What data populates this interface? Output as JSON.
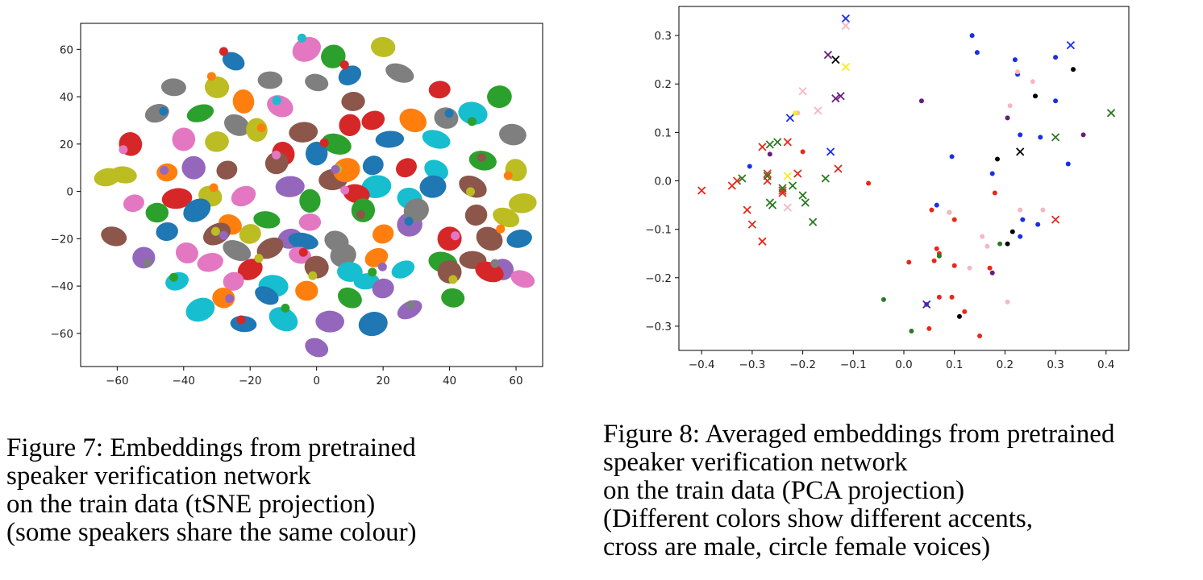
{
  "figures": {
    "fig7": {
      "caption_lines": [
        "Figure 7: Embeddings from pretrained",
        "speaker verification network",
        "on the train data (tSNE projection)",
        "(some speakers share the same colour)"
      ]
    },
    "fig8": {
      "caption_lines": [
        "Figure 8: Averaged embeddings from pretrained",
        "speaker verification network",
        "on the train data (PCA projection)",
        "(Different colors show different accents,",
        "cross are male, circle female voices)"
      ]
    }
  },
  "chart_data": [
    {
      "type": "scatter",
      "title": "",
      "xlabel": "",
      "ylabel": "",
      "xlim": [
        -71,
        68
      ],
      "ylim": [
        -74,
        71
      ],
      "xticks": [
        -60,
        -40,
        -20,
        0,
        20,
        40,
        60
      ],
      "yticks": [
        -60,
        -40,
        -20,
        0,
        20,
        40,
        60
      ],
      "grid": false,
      "legend": "none",
      "palette": [
        "#1f77b4",
        "#ff7f0e",
        "#2ca02c",
        "#d62728",
        "#9467bd",
        "#8c564b",
        "#e377c2",
        "#7f7f7f",
        "#bcbd22",
        "#17becf"
      ],
      "clusters": [
        {
          "x": -3,
          "y": 60,
          "c": 6
        },
        {
          "x": 5,
          "y": 57,
          "c": 2
        },
        {
          "x": 20,
          "y": 61,
          "c": 8
        },
        {
          "x": -25,
          "y": 55,
          "c": 0
        },
        {
          "x": -14,
          "y": 47,
          "c": 7
        },
        {
          "x": 0,
          "y": 46,
          "c": 7
        },
        {
          "x": 10,
          "y": 49,
          "c": 0
        },
        {
          "x": 25,
          "y": 50,
          "c": 7
        },
        {
          "x": -43,
          "y": 44,
          "c": 7
        },
        {
          "x": -30,
          "y": 44,
          "c": 8
        },
        {
          "x": 37,
          "y": 43,
          "c": 3
        },
        {
          "x": -22,
          "y": 38,
          "c": 1
        },
        {
          "x": -11,
          "y": 36,
          "c": 6
        },
        {
          "x": 11,
          "y": 38,
          "c": 5
        },
        {
          "x": 55,
          "y": 40,
          "c": 2
        },
        {
          "x": -48,
          "y": 33,
          "c": 7
        },
        {
          "x": -35,
          "y": 33,
          "c": 2
        },
        {
          "x": 29,
          "y": 30,
          "c": 1
        },
        {
          "x": 47,
          "y": 33,
          "c": 9
        },
        {
          "x": -24,
          "y": 28,
          "c": 7
        },
        {
          "x": 17,
          "y": 30,
          "c": 3
        },
        {
          "x": 39,
          "y": 31,
          "c": 7
        },
        {
          "x": -40,
          "y": 22,
          "c": 6
        },
        {
          "x": -30,
          "y": 21,
          "c": 8
        },
        {
          "x": -18,
          "y": 26,
          "c": 8
        },
        {
          "x": -4,
          "y": 25,
          "c": 5
        },
        {
          "x": 10,
          "y": 28,
          "c": 3
        },
        {
          "x": -56,
          "y": 20,
          "c": 3
        },
        {
          "x": 59,
          "y": 24,
          "c": 7
        },
        {
          "x": 36,
          "y": 22,
          "c": 9
        },
        {
          "x": -10,
          "y": 16,
          "c": 3
        },
        {
          "x": 6,
          "y": 20,
          "c": 2
        },
        {
          "x": 22,
          "y": 22,
          "c": 0
        },
        {
          "x": -45,
          "y": 8,
          "c": 1
        },
        {
          "x": -27,
          "y": 9,
          "c": 5
        },
        {
          "x": -12,
          "y": 12,
          "c": 5
        },
        {
          "x": 0,
          "y": 16,
          "c": 0
        },
        {
          "x": 17,
          "y": 11,
          "c": 0
        },
        {
          "x": 36,
          "y": 9,
          "c": 9
        },
        {
          "x": 50,
          "y": 13,
          "c": 2
        },
        {
          "x": -37,
          "y": 10,
          "c": 4
        },
        {
          "x": -63,
          "y": 6,
          "c": 8
        },
        {
          "x": 60,
          "y": 9,
          "c": 8
        },
        {
          "x": -55,
          "y": -5,
          "c": 6
        },
        {
          "x": -42,
          "y": -3,
          "c": 3
        },
        {
          "x": -32,
          "y": -2,
          "c": 8
        },
        {
          "x": -22,
          "y": -2,
          "c": 6
        },
        {
          "x": -8,
          "y": 2,
          "c": 4
        },
        {
          "x": 5,
          "y": 5,
          "c": 5
        },
        {
          "x": 18,
          "y": 2,
          "c": 9
        },
        {
          "x": 28,
          "y": -3,
          "c": 9
        },
        {
          "x": 47,
          "y": 2,
          "c": 5
        },
        {
          "x": 35,
          "y": 2,
          "c": 0
        },
        {
          "x": -2,
          "y": -4,
          "c": 2
        },
        {
          "x": 12,
          "y": -1,
          "c": 3
        },
        {
          "x": 62,
          "y": -5,
          "c": 8
        },
        {
          "x": -36,
          "y": -8,
          "c": 0
        },
        {
          "x": -26,
          "y": -14,
          "c": 1
        },
        {
          "x": -15,
          "y": -12,
          "c": 2
        },
        {
          "x": -2,
          "y": -13,
          "c": 6
        },
        {
          "x": 14,
          "y": -8,
          "c": 2
        },
        {
          "x": 28,
          "y": -14,
          "c": 4
        },
        {
          "x": 48,
          "y": -10,
          "c": 5
        },
        {
          "x": 57,
          "y": -11,
          "c": 8
        },
        {
          "x": -61,
          "y": -19,
          "c": 5
        },
        {
          "x": -45,
          "y": -17,
          "c": 0
        },
        {
          "x": -30,
          "y": -18,
          "c": 5
        },
        {
          "x": -20,
          "y": -18,
          "c": 8
        },
        {
          "x": -8,
          "y": -20,
          "c": 4
        },
        {
          "x": -4,
          "y": -21,
          "c": 0
        },
        {
          "x": 6,
          "y": -21,
          "c": 7
        },
        {
          "x": 20,
          "y": -18,
          "c": 1
        },
        {
          "x": 40,
          "y": -20,
          "c": 3
        },
        {
          "x": 52,
          "y": -20,
          "c": 5
        },
        {
          "x": 61,
          "y": -20,
          "c": 0
        },
        {
          "x": -52,
          "y": -28,
          "c": 4
        },
        {
          "x": -39,
          "y": -26,
          "c": 6
        },
        {
          "x": -24,
          "y": -25,
          "c": 7
        },
        {
          "x": -14,
          "y": -24,
          "c": 5
        },
        {
          "x": -5,
          "y": -27,
          "c": 6
        },
        {
          "x": 8,
          "y": -27,
          "c": 7
        },
        {
          "x": 18,
          "y": -28,
          "c": 1
        },
        {
          "x": 38,
          "y": -30,
          "c": 2
        },
        {
          "x": 47,
          "y": -29,
          "c": 5
        },
        {
          "x": 56,
          "y": -33,
          "c": 4
        },
        {
          "x": -32,
          "y": -30,
          "c": 6
        },
        {
          "x": -20,
          "y": -33,
          "c": 3
        },
        {
          "x": 0,
          "y": -32,
          "c": 5
        },
        {
          "x": 10,
          "y": -34,
          "c": 9
        },
        {
          "x": 26,
          "y": -33,
          "c": 9
        },
        {
          "x": 40,
          "y": -34,
          "c": 5
        },
        {
          "x": 52,
          "y": -34,
          "c": 3
        },
        {
          "x": 62,
          "y": -37,
          "c": 6
        },
        {
          "x": -42,
          "y": -38,
          "c": 9
        },
        {
          "x": -25,
          "y": -38,
          "c": 6
        },
        {
          "x": -13,
          "y": -40,
          "c": 9
        },
        {
          "x": 15,
          "y": -38,
          "c": 9
        },
        {
          "x": 20,
          "y": -41,
          "c": 4
        },
        {
          "x": -3,
          "y": -42,
          "c": 1
        },
        {
          "x": -28,
          "y": -45,
          "c": 1
        },
        {
          "x": -15,
          "y": -44,
          "c": 0
        },
        {
          "x": 10,
          "y": -45,
          "c": 2
        },
        {
          "x": 28,
          "y": -50,
          "c": 4
        },
        {
          "x": 41,
          "y": -45,
          "c": 2
        },
        {
          "x": -35,
          "y": -50,
          "c": 9
        },
        {
          "x": -10,
          "y": -54,
          "c": 9
        },
        {
          "x": 4,
          "y": -55,
          "c": 4
        },
        {
          "x": 17,
          "y": -56,
          "c": 0
        },
        {
          "x": -22,
          "y": -56,
          "c": 0
        },
        {
          "x": 0,
          "y": -66,
          "c": 4
        },
        {
          "x": -58,
          "y": 7,
          "c": 8
        },
        {
          "x": 9,
          "y": 9,
          "c": 1
        },
        {
          "x": 27,
          "y": 10,
          "c": 3
        },
        {
          "x": -48,
          "y": -9,
          "c": 2
        },
        {
          "x": 30,
          "y": -8,
          "c": 7
        }
      ]
    },
    {
      "type": "scatter",
      "title": "",
      "xlabel": "",
      "ylabel": "",
      "xlim": [
        -0.445,
        0.445
      ],
      "ylim": [
        -0.35,
        0.36
      ],
      "xticks": [
        -0.4,
        -0.3,
        -0.2,
        -0.1,
        0.0,
        0.1,
        0.2,
        0.3,
        0.4
      ],
      "xtick_labels": [
        "−0.4",
        "−0.3",
        "−0.2",
        "−0.1",
        "0.0",
        "0.1",
        "0.2",
        "0.3",
        "0.4"
      ],
      "yticks": [
        -0.3,
        -0.2,
        -0.1,
        0.0,
        0.1,
        0.2,
        0.3
      ],
      "ytick_labels": [
        "−0.3",
        "−0.2",
        "−0.1",
        "0.0",
        "0.1",
        "0.2",
        "0.3"
      ],
      "grid": false,
      "legend": "none",
      "series": [
        {
          "color": "#e8281a",
          "marker": "x",
          "points": [
            [
              -0.4,
              -0.02
            ],
            [
              -0.34,
              -0.01
            ],
            [
              -0.33,
              0.0
            ],
            [
              -0.31,
              -0.06
            ],
            [
              -0.3,
              -0.09
            ],
            [
              -0.28,
              -0.125
            ],
            [
              -0.28,
              0.07
            ],
            [
              -0.27,
              0.0
            ],
            [
              -0.27,
              0.015
            ],
            [
              -0.24,
              -0.02
            ],
            [
              -0.24,
              -0.025
            ],
            [
              -0.23,
              0.08
            ],
            [
              -0.21,
              0.015
            ],
            [
              -0.13,
              0.025
            ],
            [
              0.3,
              -0.08
            ]
          ]
        },
        {
          "color": "#e8281a",
          "marker": "o",
          "points": [
            [
              -0.2,
              0.06
            ],
            [
              -0.07,
              -0.005
            ],
            [
              0.01,
              -0.168
            ],
            [
              0.055,
              -0.06
            ],
            [
              0.06,
              -0.165
            ],
            [
              0.065,
              -0.14
            ],
            [
              0.07,
              -0.15
            ],
            [
              0.09,
              -0.065
            ],
            [
              0.1,
              -0.08
            ],
            [
              0.1,
              -0.175
            ],
            [
              0.12,
              -0.27
            ],
            [
              0.05,
              -0.305
            ],
            [
              0.095,
              -0.24
            ],
            [
              0.07,
              -0.24
            ],
            [
              0.15,
              -0.32
            ],
            [
              0.045,
              -0.255
            ],
            [
              0.18,
              -0.025
            ],
            [
              0.17,
              -0.18
            ]
          ]
        },
        {
          "color": "#2a7a22",
          "marker": "x",
          "points": [
            [
              -0.32,
              0.005
            ],
            [
              -0.265,
              0.075
            ],
            [
              -0.25,
              0.08
            ],
            [
              -0.27,
              0.01
            ],
            [
              -0.265,
              -0.045
            ],
            [
              -0.26,
              -0.05
            ],
            [
              -0.24,
              -0.015
            ],
            [
              -0.22,
              -0.01
            ],
            [
              -0.2,
              -0.03
            ],
            [
              -0.195,
              -0.045
            ],
            [
              -0.18,
              -0.085
            ],
            [
              -0.155,
              0.005
            ],
            [
              0.3,
              0.09
            ],
            [
              0.41,
              0.14
            ]
          ]
        },
        {
          "color": "#2a7a22",
          "marker": "o",
          "points": [
            [
              -0.04,
              -0.245
            ],
            [
              0.015,
              -0.31
            ],
            [
              0.07,
              -0.155
            ],
            [
              0.19,
              -0.13
            ]
          ]
        },
        {
          "color": "#1a2ee6",
          "marker": "x",
          "points": [
            [
              -0.115,
              0.335
            ],
            [
              -0.225,
              0.13
            ],
            [
              -0.145,
              0.06
            ],
            [
              0.045,
              -0.255
            ],
            [
              0.33,
              0.28
            ]
          ]
        },
        {
          "color": "#1a2ee6",
          "marker": "o",
          "points": [
            [
              -0.305,
              0.03
            ],
            [
              0.095,
              0.05
            ],
            [
              0.135,
              0.3
            ],
            [
              0.145,
              0.265
            ],
            [
              0.22,
              0.25
            ],
            [
              0.225,
              0.22
            ],
            [
              0.23,
              0.095
            ],
            [
              0.27,
              0.09
            ],
            [
              0.3,
              0.255
            ],
            [
              0.3,
              0.165
            ],
            [
              0.325,
              0.035
            ],
            [
              0.175,
              0.015
            ],
            [
              0.065,
              -0.05
            ],
            [
              0.235,
              -0.08
            ],
            [
              0.23,
              -0.115
            ],
            [
              0.265,
              -0.09
            ]
          ]
        },
        {
          "color": "#000000",
          "marker": "x",
          "points": [
            [
              -0.135,
              0.25
            ],
            [
              0.23,
              0.06
            ]
          ]
        },
        {
          "color": "#000000",
          "marker": "o",
          "points": [
            [
              0.335,
              0.23
            ],
            [
              0.26,
              0.175
            ],
            [
              0.185,
              0.045
            ],
            [
              0.215,
              -0.105
            ],
            [
              0.205,
              -0.13
            ],
            [
              0.11,
              -0.28
            ]
          ]
        },
        {
          "color": "#f5b8c0",
          "marker": "x",
          "points": [
            [
              -0.115,
              0.32
            ],
            [
              -0.2,
              0.185
            ],
            [
              -0.17,
              0.145
            ],
            [
              -0.23,
              -0.055
            ]
          ]
        },
        {
          "color": "#f5b8c0",
          "marker": "o",
          "points": [
            [
              -0.21,
              0.14
            ],
            [
              0.225,
              0.225
            ],
            [
              0.255,
              0.205
            ],
            [
              0.21,
              0.155
            ],
            [
              0.23,
              -0.06
            ],
            [
              0.275,
              -0.06
            ],
            [
              0.13,
              -0.18
            ],
            [
              0.155,
              -0.115
            ],
            [
              0.165,
              -0.135
            ],
            [
              0.205,
              -0.25
            ],
            [
              0.09,
              -0.065
            ]
          ]
        },
        {
          "color": "#6a1b7a",
          "marker": "x",
          "points": [
            [
              -0.15,
              0.26
            ],
            [
              -0.135,
              0.17
            ],
            [
              -0.125,
              0.175
            ]
          ]
        },
        {
          "color": "#6a1b7a",
          "marker": "o",
          "points": [
            [
              -0.265,
              0.055
            ],
            [
              0.035,
              0.165
            ],
            [
              0.205,
              0.13
            ],
            [
              0.355,
              0.095
            ],
            [
              0.175,
              -0.19
            ]
          ]
        },
        {
          "color": "#f2ee1e",
          "marker": "x",
          "points": [
            [
              -0.115,
              0.235
            ],
            [
              -0.23,
              0.01
            ]
          ]
        },
        {
          "color": "#f2ee1e",
          "marker": "o",
          "points": [
            [
              -0.215,
              0.14
            ]
          ]
        }
      ]
    }
  ]
}
